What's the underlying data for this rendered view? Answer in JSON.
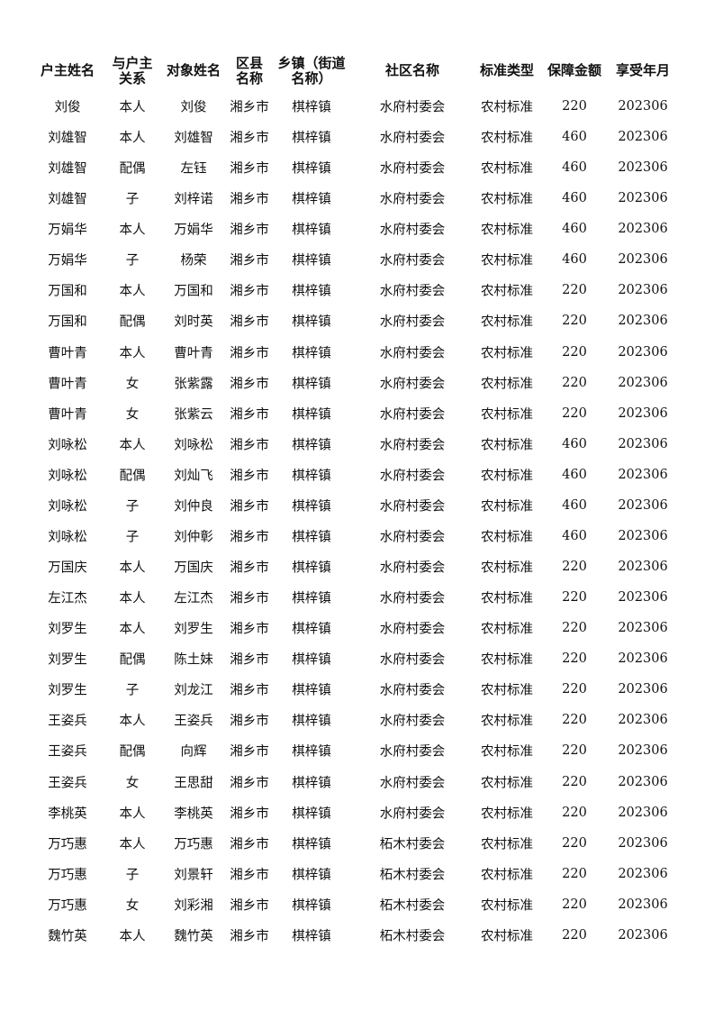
{
  "table": {
    "headers": [
      "户主姓名",
      "与户主\n关系",
      "对象姓名",
      "区县\n名称",
      "乡镇（街道\n名称）",
      "社区名称",
      "标准类型",
      "保障金额",
      "享受年月"
    ],
    "rows": [
      [
        "刘俊",
        "本人",
        "刘俊",
        "湘乡市",
        "棋梓镇",
        "水府村委会",
        "农村标准",
        "220",
        "202306"
      ],
      [
        "刘雄智",
        "本人",
        "刘雄智",
        "湘乡市",
        "棋梓镇",
        "水府村委会",
        "农村标准",
        "460",
        "202306"
      ],
      [
        "刘雄智",
        "配偶",
        "左钰",
        "湘乡市",
        "棋梓镇",
        "水府村委会",
        "农村标准",
        "460",
        "202306"
      ],
      [
        "刘雄智",
        "子",
        "刘梓诺",
        "湘乡市",
        "棋梓镇",
        "水府村委会",
        "农村标准",
        "460",
        "202306"
      ],
      [
        "万娟华",
        "本人",
        "万娟华",
        "湘乡市",
        "棋梓镇",
        "水府村委会",
        "农村标准",
        "460",
        "202306"
      ],
      [
        "万娟华",
        "子",
        "杨荣",
        "湘乡市",
        "棋梓镇",
        "水府村委会",
        "农村标准",
        "460",
        "202306"
      ],
      [
        "万国和",
        "本人",
        "万国和",
        "湘乡市",
        "棋梓镇",
        "水府村委会",
        "农村标准",
        "220",
        "202306"
      ],
      [
        "万国和",
        "配偶",
        "刘时英",
        "湘乡市",
        "棋梓镇",
        "水府村委会",
        "农村标准",
        "220",
        "202306"
      ],
      [
        "曹叶青",
        "本人",
        "曹叶青",
        "湘乡市",
        "棋梓镇",
        "水府村委会",
        "农村标准",
        "220",
        "202306"
      ],
      [
        "曹叶青",
        "女",
        "张紫露",
        "湘乡市",
        "棋梓镇",
        "水府村委会",
        "农村标准",
        "220",
        "202306"
      ],
      [
        "曹叶青",
        "女",
        "张紫云",
        "湘乡市",
        "棋梓镇",
        "水府村委会",
        "农村标准",
        "220",
        "202306"
      ],
      [
        "刘咏松",
        "本人",
        "刘咏松",
        "湘乡市",
        "棋梓镇",
        "水府村委会",
        "农村标准",
        "460",
        "202306"
      ],
      [
        "刘咏松",
        "配偶",
        "刘灿飞",
        "湘乡市",
        "棋梓镇",
        "水府村委会",
        "农村标准",
        "460",
        "202306"
      ],
      [
        "刘咏松",
        "子",
        "刘仲良",
        "湘乡市",
        "棋梓镇",
        "水府村委会",
        "农村标准",
        "460",
        "202306"
      ],
      [
        "刘咏松",
        "子",
        "刘仲彰",
        "湘乡市",
        "棋梓镇",
        "水府村委会",
        "农村标准",
        "460",
        "202306"
      ],
      [
        "万国庆",
        "本人",
        "万国庆",
        "湘乡市",
        "棋梓镇",
        "水府村委会",
        "农村标准",
        "220",
        "202306"
      ],
      [
        "左江杰",
        "本人",
        "左江杰",
        "湘乡市",
        "棋梓镇",
        "水府村委会",
        "农村标准",
        "220",
        "202306"
      ],
      [
        "刘罗生",
        "本人",
        "刘罗生",
        "湘乡市",
        "棋梓镇",
        "水府村委会",
        "农村标准",
        "220",
        "202306"
      ],
      [
        "刘罗生",
        "配偶",
        "陈土妹",
        "湘乡市",
        "棋梓镇",
        "水府村委会",
        "农村标准",
        "220",
        "202306"
      ],
      [
        "刘罗生",
        "子",
        "刘龙江",
        "湘乡市",
        "棋梓镇",
        "水府村委会",
        "农村标准",
        "220",
        "202306"
      ],
      [
        "王姿兵",
        "本人",
        "王姿兵",
        "湘乡市",
        "棋梓镇",
        "水府村委会",
        "农村标准",
        "220",
        "202306"
      ],
      [
        "王姿兵",
        "配偶",
        "向辉",
        "湘乡市",
        "棋梓镇",
        "水府村委会",
        "农村标准",
        "220",
        "202306"
      ],
      [
        "王姿兵",
        "女",
        "王思甜",
        "湘乡市",
        "棋梓镇",
        "水府村委会",
        "农村标准",
        "220",
        "202306"
      ],
      [
        "李桃英",
        "本人",
        "李桃英",
        "湘乡市",
        "棋梓镇",
        "水府村委会",
        "农村标准",
        "220",
        "202306"
      ],
      [
        "万巧惠",
        "本人",
        "万巧惠",
        "湘乡市",
        "棋梓镇",
        "柘木村委会",
        "农村标准",
        "220",
        "202306"
      ],
      [
        "万巧惠",
        "子",
        "刘景轩",
        "湘乡市",
        "棋梓镇",
        "柘木村委会",
        "农村标准",
        "220",
        "202306"
      ],
      [
        "万巧惠",
        "女",
        "刘彩湘",
        "湘乡市",
        "棋梓镇",
        "柘木村委会",
        "农村标准",
        "220",
        "202306"
      ],
      [
        "魏竹英",
        "本人",
        "魏竹英",
        "湘乡市",
        "棋梓镇",
        "柘木村委会",
        "农村标准",
        "220",
        "202306"
      ]
    ]
  }
}
